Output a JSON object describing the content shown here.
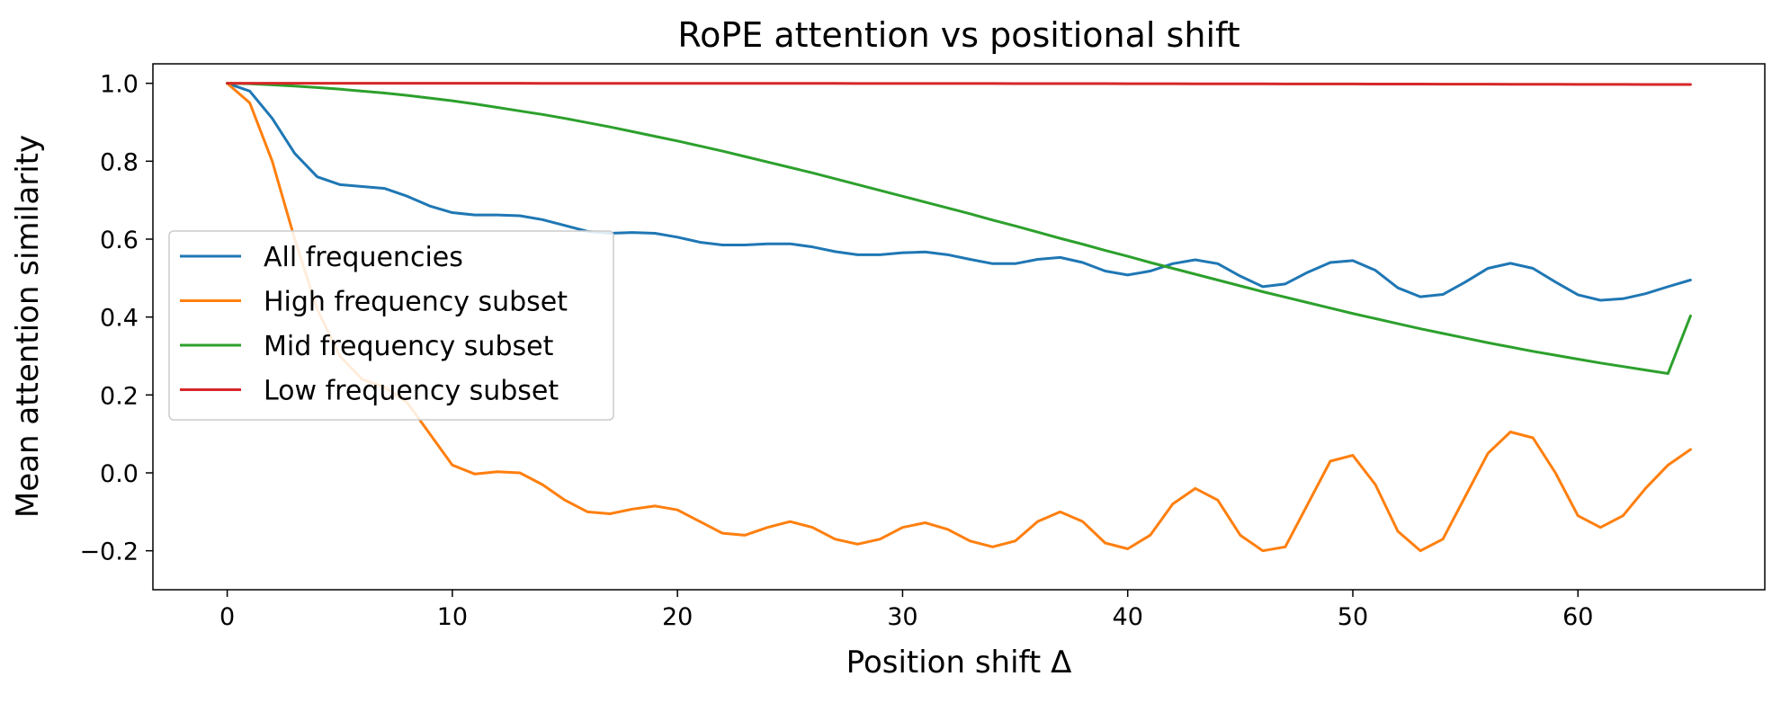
{
  "chart_data": {
    "type": "line",
    "title": "RoPE attention vs positional shift",
    "xlabel": "Position shift Δ",
    "ylabel": "Mean attention similarity",
    "xlim": [
      -3.3,
      68.3
    ],
    "ylim": [
      -0.3,
      1.05
    ],
    "xticks": [
      0,
      10,
      20,
      30,
      40,
      50,
      60
    ],
    "yticks": [
      -0.2,
      0.0,
      0.2,
      0.4,
      0.6,
      0.8,
      1.0
    ],
    "ytick_labels": [
      "−0.2",
      "0.0",
      "0.2",
      "0.4",
      "0.6",
      "0.8",
      "1.0"
    ],
    "grid": false,
    "legend_position": "center-left",
    "x": [
      0,
      1,
      2,
      3,
      4,
      5,
      6,
      7,
      8,
      9,
      10,
      11,
      12,
      13,
      14,
      15,
      16,
      17,
      18,
      19,
      20,
      21,
      22,
      23,
      24,
      25,
      26,
      27,
      28,
      29,
      30,
      31,
      32,
      33,
      34,
      35,
      36,
      37,
      38,
      39,
      40,
      41,
      42,
      43,
      44,
      45,
      46,
      47,
      48,
      49,
      50,
      51,
      52,
      53,
      54,
      55,
      56,
      57,
      58,
      59,
      60,
      61,
      62,
      63,
      64,
      65
    ],
    "series": [
      {
        "name": "All frequencies",
        "color": "#1f77b4",
        "values": [
          1.0,
          0.98,
          0.91,
          0.82,
          0.76,
          0.74,
          0.735,
          0.73,
          0.71,
          0.685,
          0.668,
          0.662,
          0.662,
          0.66,
          0.65,
          0.635,
          0.62,
          0.615,
          0.617,
          0.615,
          0.605,
          0.592,
          0.585,
          0.585,
          0.588,
          0.588,
          0.58,
          0.568,
          0.56,
          0.56,
          0.565,
          0.567,
          0.56,
          0.548,
          0.537,
          0.537,
          0.548,
          0.553,
          0.54,
          0.518,
          0.508,
          0.518,
          0.537,
          0.547,
          0.537,
          0.505,
          0.478,
          0.485,
          0.515,
          0.54,
          0.545,
          0.52,
          0.475,
          0.452,
          0.458,
          0.49,
          0.525,
          0.538,
          0.525,
          0.49,
          0.457,
          0.443,
          0.447,
          0.46,
          0.478,
          0.495
        ]
      },
      {
        "name": "High frequency subset",
        "color": "#ff7f0e",
        "values": [
          1.0,
          0.95,
          0.8,
          0.6,
          0.42,
          0.3,
          0.24,
          0.22,
          0.18,
          0.1,
          0.02,
          -0.003,
          0.003,
          0.0,
          -0.03,
          -0.07,
          -0.1,
          -0.105,
          -0.093,
          -0.085,
          -0.095,
          -0.125,
          -0.155,
          -0.16,
          -0.14,
          -0.125,
          -0.14,
          -0.17,
          -0.183,
          -0.17,
          -0.14,
          -0.128,
          -0.145,
          -0.175,
          -0.19,
          -0.175,
          -0.125,
          -0.1,
          -0.125,
          -0.18,
          -0.195,
          -0.16,
          -0.08,
          -0.04,
          -0.07,
          -0.16,
          -0.2,
          -0.19,
          -0.08,
          0.03,
          0.045,
          -0.03,
          -0.15,
          -0.2,
          -0.17,
          -0.06,
          0.05,
          0.105,
          0.09,
          0.0,
          -0.11,
          -0.14,
          -0.11,
          -0.04,
          0.02,
          0.06
        ]
      },
      {
        "name": "Mid frequency subset",
        "color": "#2ca02c",
        "values": [
          1.0,
          0.999,
          0.996,
          0.993,
          0.989,
          0.985,
          0.98,
          0.975,
          0.969,
          0.962,
          0.955,
          0.947,
          0.938,
          0.929,
          0.92,
          0.91,
          0.899,
          0.888,
          0.876,
          0.864,
          0.852,
          0.839,
          0.826,
          0.812,
          0.798,
          0.784,
          0.77,
          0.755,
          0.74,
          0.725,
          0.71,
          0.695,
          0.68,
          0.665,
          0.649,
          0.634,
          0.618,
          0.602,
          0.587,
          0.571,
          0.556,
          0.54,
          0.525,
          0.51,
          0.495,
          0.48,
          0.465,
          0.451,
          0.437,
          0.423,
          0.409,
          0.396,
          0.383,
          0.37,
          0.358,
          0.346,
          0.334,
          0.323,
          0.312,
          0.302,
          0.292,
          0.282,
          0.273,
          0.264,
          0.255,
          0.403
        ]
      },
      {
        "name": "Low frequency subset",
        "color": "#d62728",
        "values": [
          1.0,
          1.0,
          1.0,
          1.0,
          1.0,
          1.0,
          1.0,
          1.0,
          1.0,
          1.0,
          1.0,
          1.0,
          1.0,
          1.0,
          0.9999,
          0.9999,
          0.9999,
          0.9999,
          0.9999,
          0.9999,
          0.9999,
          0.9998,
          0.9998,
          0.9998,
          0.9998,
          0.9997,
          0.9997,
          0.9997,
          0.9996,
          0.9996,
          0.9996,
          0.9995,
          0.9995,
          0.9994,
          0.9994,
          0.9993,
          0.9993,
          0.9992,
          0.9992,
          0.9991,
          0.999,
          0.999,
          0.9989,
          0.9988,
          0.9988,
          0.9987,
          0.9986,
          0.9985,
          0.9984,
          0.9984,
          0.9983,
          0.9982,
          0.9981,
          0.998,
          0.9979,
          0.9978,
          0.9977,
          0.9976,
          0.9975,
          0.9974,
          0.9973,
          0.9972,
          0.9971,
          0.997,
          0.9969,
          0.9968
        ]
      }
    ]
  }
}
